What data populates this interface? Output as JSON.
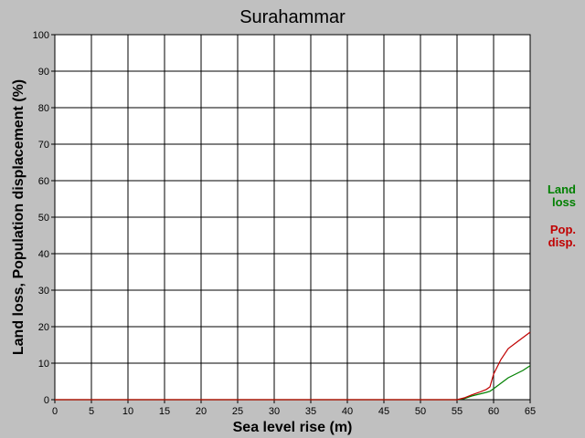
{
  "chart_data": {
    "type": "line",
    "title": "Surahammar",
    "x_label": "Sea level rise (m)",
    "y_label": "Land loss, Population displacement (%)",
    "x": [
      0,
      55,
      56,
      57,
      58,
      59,
      59.5,
      60,
      61,
      62,
      63,
      64,
      65
    ],
    "series": [
      {
        "name": "Land loss",
        "color": "#008000",
        "values": [
          0,
          0,
          0.3,
          1,
          1.5,
          2,
          2.3,
          3,
          4.5,
          6,
          7,
          8,
          9.3
        ]
      },
      {
        "name": "Pop. disp.",
        "color": "#c00000",
        "values": [
          0,
          0,
          0.5,
          1.3,
          2,
          2.8,
          3.5,
          7,
          11,
          14,
          15.5,
          17,
          18.5
        ]
      }
    ],
    "xlim": [
      0,
      65
    ],
    "xticks": [
      0,
      5,
      10,
      15,
      20,
      25,
      30,
      35,
      40,
      45,
      50,
      55,
      60,
      65
    ],
    "ylim": [
      0,
      100
    ],
    "yticks": [
      0,
      10,
      20,
      30,
      40,
      50,
      60,
      70,
      80,
      90,
      100
    ],
    "grid": true
  }
}
